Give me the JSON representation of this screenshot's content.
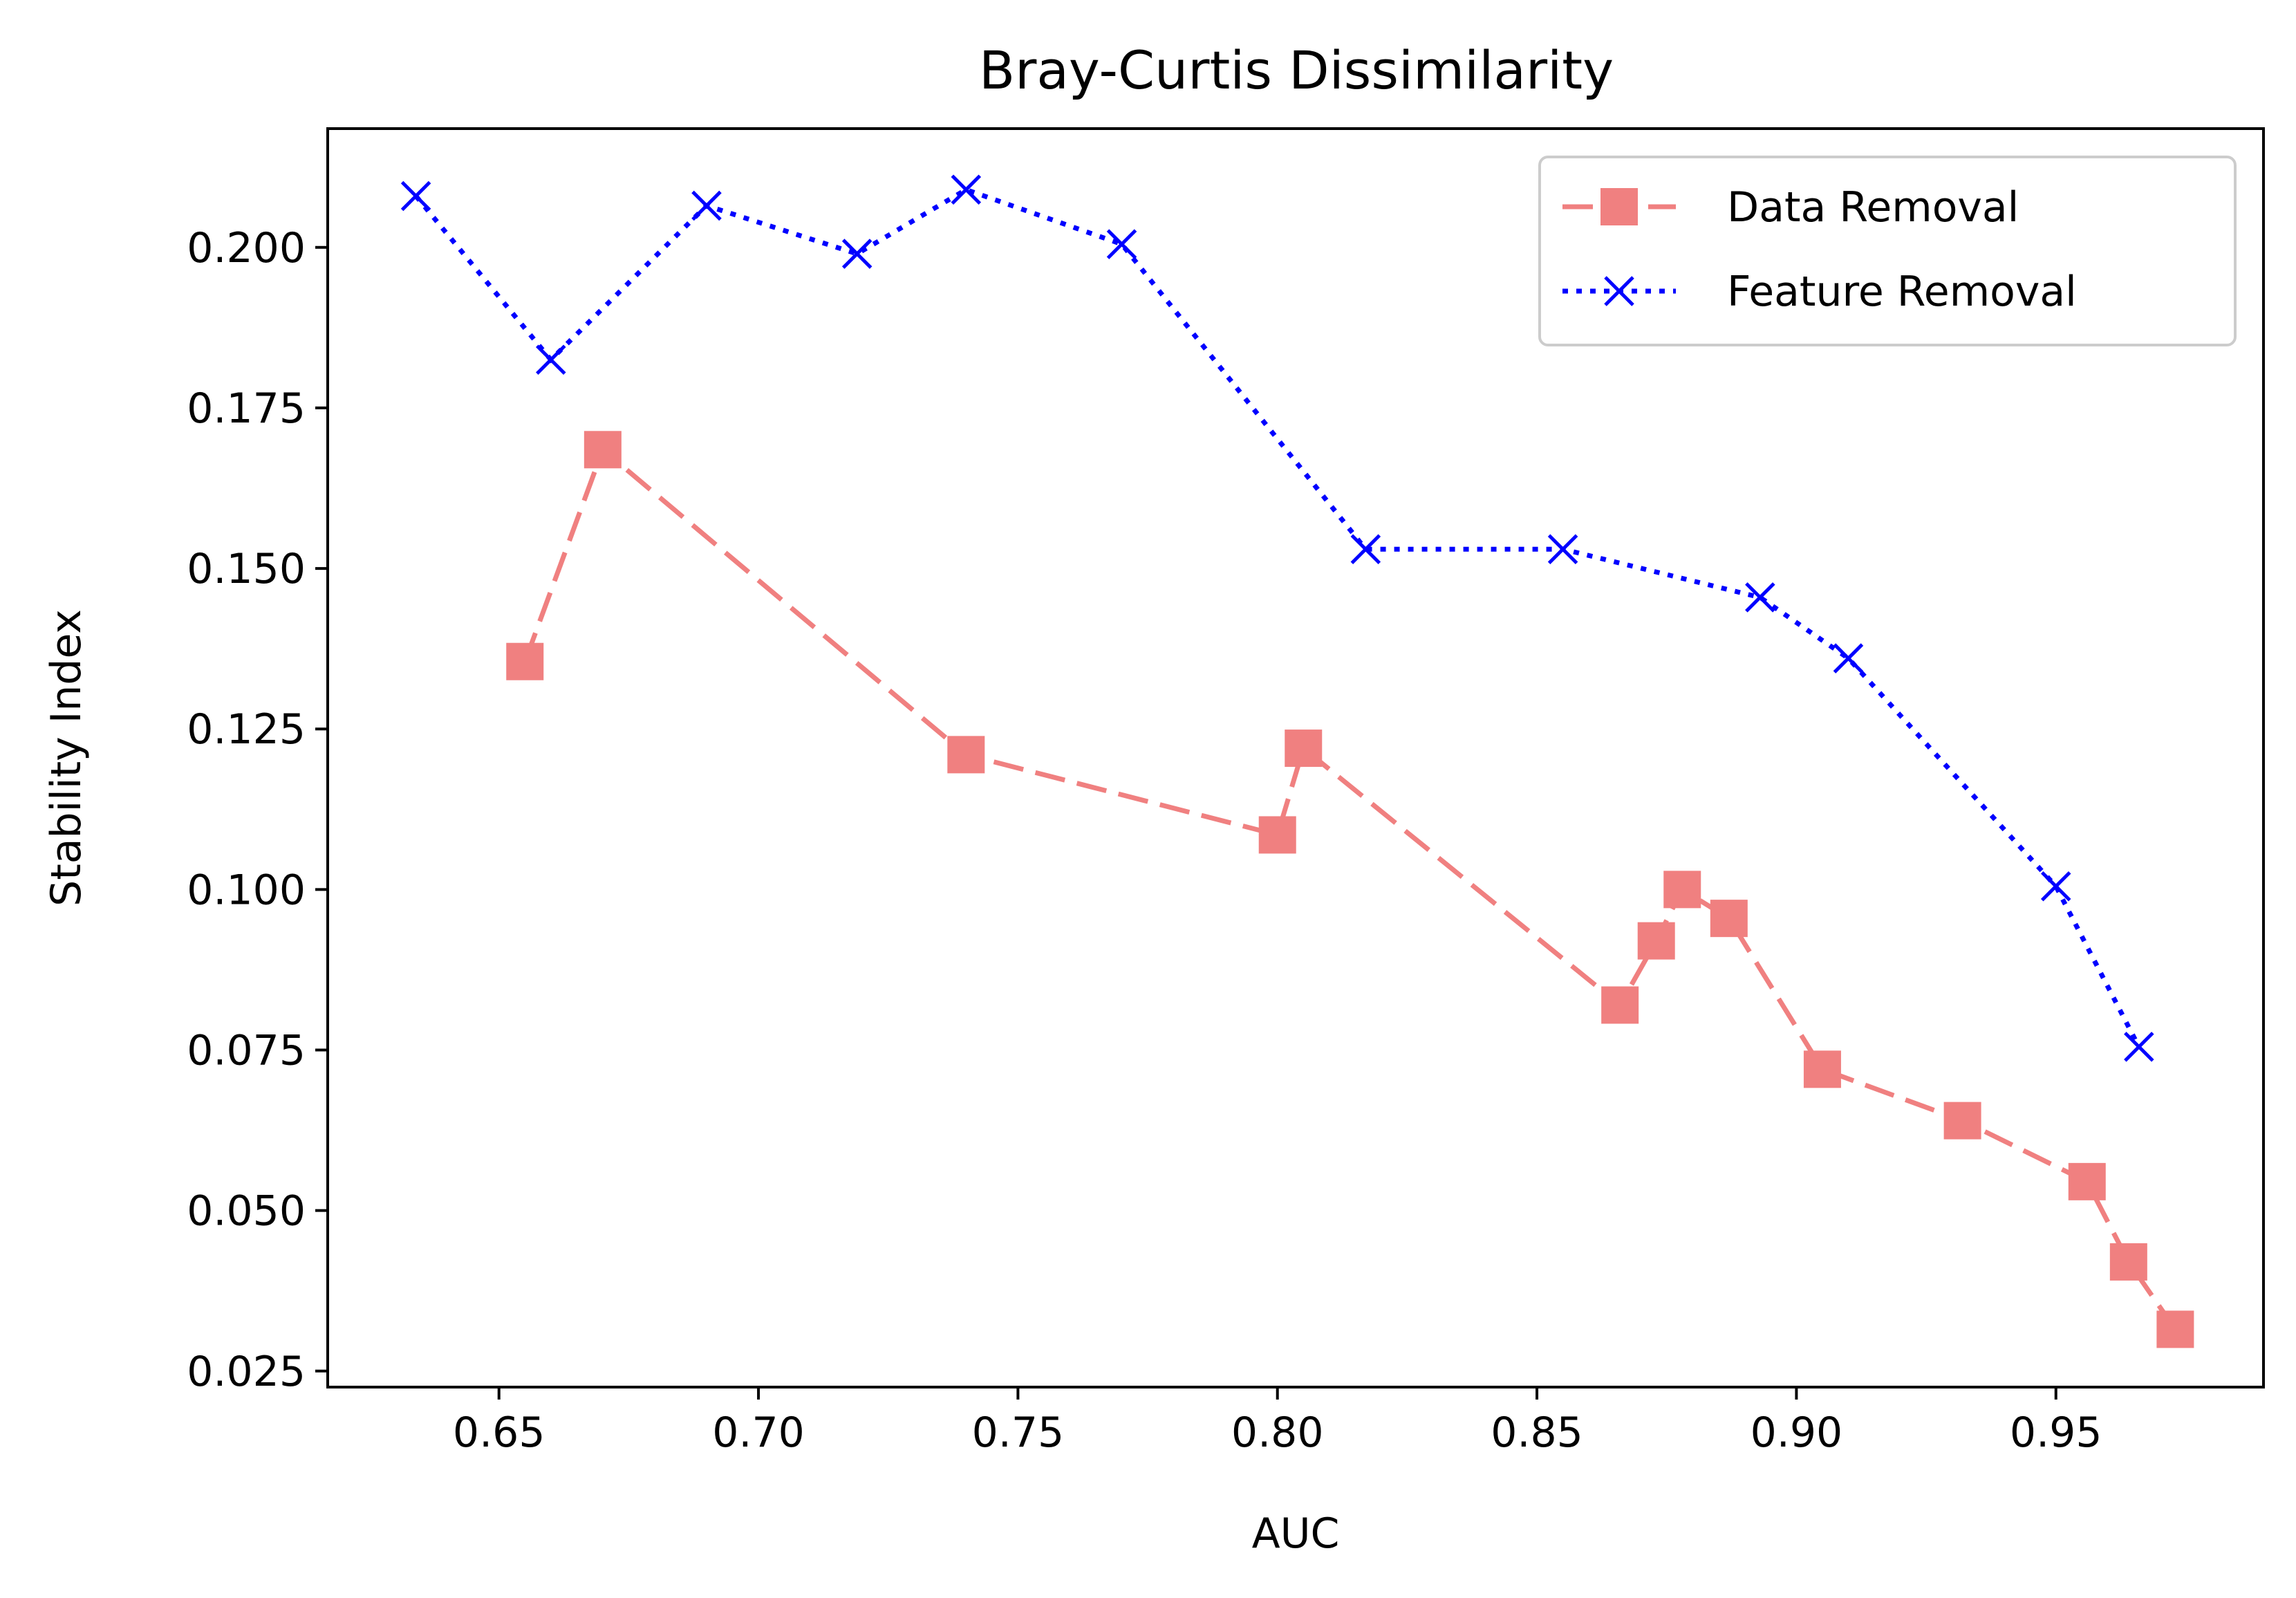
{
  "chart_data": {
    "type": "line",
    "title": "Bray-Curtis Dissimilarity",
    "xlabel": "AUC",
    "ylabel": "Stability Index",
    "xlim": [
      0.617,
      0.99
    ],
    "ylim": [
      0.0225,
      0.2185
    ],
    "xticks": [
      "0.65",
      "0.70",
      "0.75",
      "0.80",
      "0.85",
      "0.90",
      "0.95"
    ],
    "yticks": [
      "0.025",
      "0.050",
      "0.075",
      "0.100",
      "0.125",
      "0.150",
      "0.175",
      "0.200"
    ],
    "grid": false,
    "legend_position": "top-right",
    "series": [
      {
        "name": "Data Removal",
        "color": "#f08080",
        "line_style": "dashed",
        "marker": "square",
        "x": [
          0.655,
          0.67,
          0.74,
          0.8,
          0.805,
          0.866,
          0.873,
          0.878,
          0.887,
          0.905,
          0.932,
          0.956,
          0.964,
          0.973
        ],
        "y": [
          0.1355,
          0.1685,
          0.121,
          0.1085,
          0.122,
          0.082,
          0.092,
          0.1,
          0.0955,
          0.072,
          0.064,
          0.0545,
          0.042,
          0.0315
        ]
      },
      {
        "name": "Feature Removal",
        "color": "#0000ff",
        "line_style": "dotted",
        "marker": "x",
        "x": [
          0.634,
          0.66,
          0.69,
          0.719,
          0.74,
          0.77,
          0.817,
          0.855,
          0.893,
          0.91,
          0.95,
          0.966
        ],
        "y": [
          0.208,
          0.1825,
          0.2065,
          0.199,
          0.209,
          0.2005,
          0.153,
          0.153,
          0.1455,
          0.136,
          0.1005,
          0.0755
        ]
      }
    ]
  }
}
